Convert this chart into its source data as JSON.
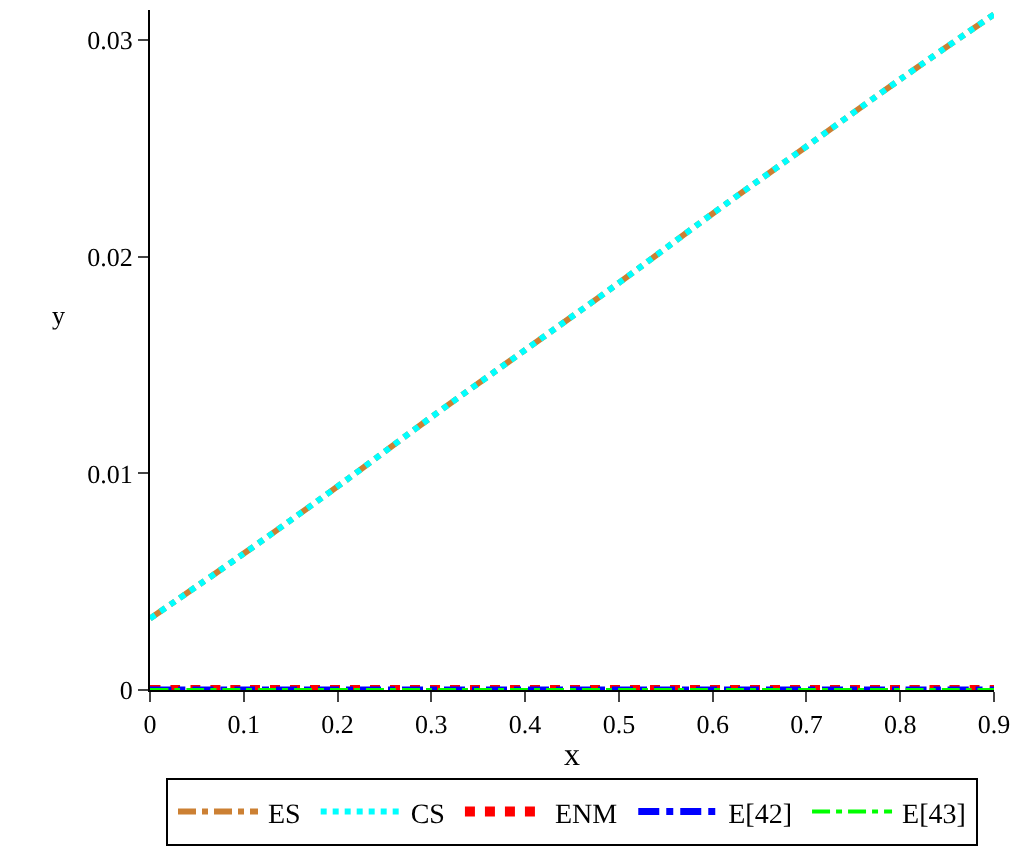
{
  "chart_data": {
    "type": "line",
    "xlabel": "x",
    "ylabel": "y",
    "x": [
      0,
      0.1,
      0.2,
      0.3,
      0.4,
      0.5,
      0.6,
      0.7,
      0.8,
      0.9
    ],
    "series": [
      {
        "name": "ES",
        "color": "#cc8033",
        "line_style": "dashed",
        "values": [
          0.0033,
          0.0063,
          0.0094,
          0.0126,
          0.0157,
          0.0188,
          0.022,
          0.0251,
          0.0282,
          0.0312
        ]
      },
      {
        "name": "CS",
        "color": "#00ffff",
        "line_style": "dotted",
        "values": [
          0.0033,
          0.0063,
          0.0094,
          0.0126,
          0.0157,
          0.0188,
          0.022,
          0.0251,
          0.0282,
          0.0312
        ]
      },
      {
        "name": "ENM",
        "color": "#ff0000",
        "line_style": "dotted",
        "values": [
          0,
          0,
          0,
          0,
          0,
          0,
          0,
          0,
          0,
          0
        ]
      },
      {
        "name": "E[42]",
        "color": "#0000ff",
        "line_style": "dashed",
        "values": [
          0,
          0,
          0,
          0,
          0,
          0,
          0,
          0,
          0,
          0
        ]
      },
      {
        "name": "E[43]",
        "color": "#00ff00",
        "line_style": "dashed",
        "values": [
          0,
          0,
          0,
          0,
          0,
          0,
          0,
          0,
          0,
          0
        ]
      }
    ],
    "xlim": [
      0,
      0.9
    ],
    "xticks": [
      0,
      0.1,
      0.2,
      0.3,
      0.4,
      0.5,
      0.6,
      0.7,
      0.8,
      0.9
    ],
    "ylim": [
      0,
      0.0314
    ],
    "yticks": [
      0,
      0.01,
      0.02,
      0.03
    ],
    "legend": "bottom",
    "marker": "none"
  }
}
